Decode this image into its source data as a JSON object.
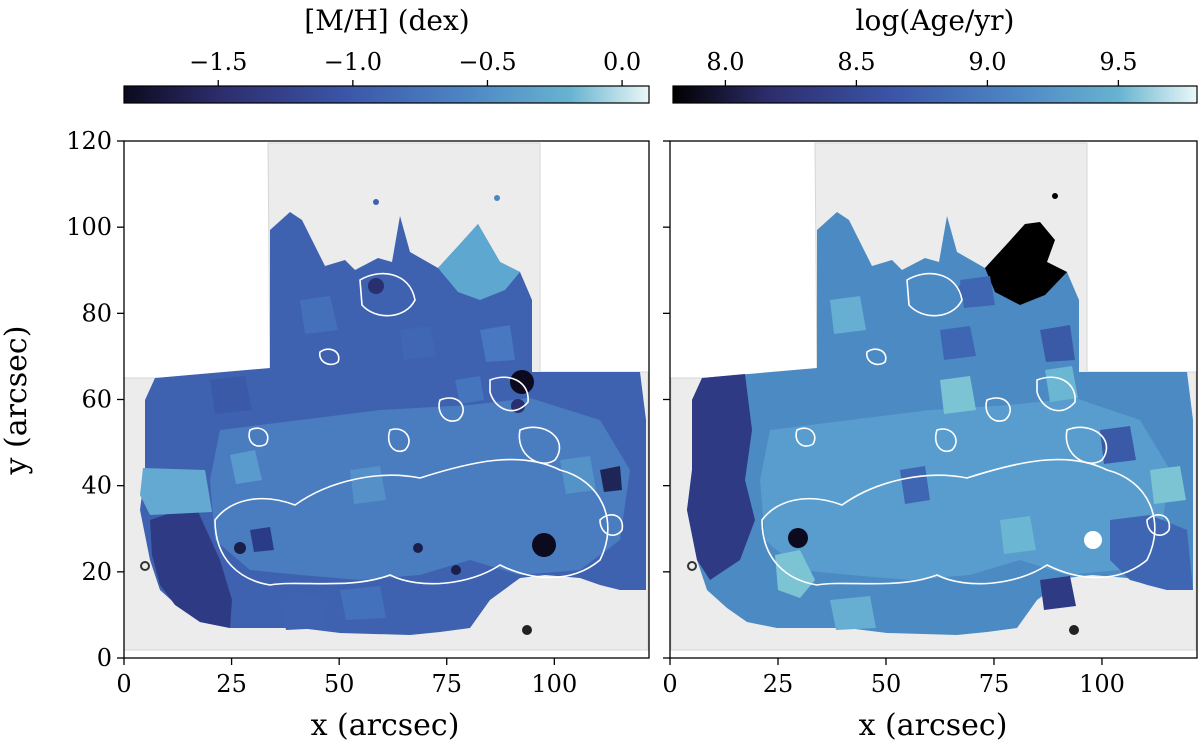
{
  "chart_data": [
    {
      "type": "heatmap",
      "panel": "left",
      "xlabel": "x (arcsec)",
      "ylabel": "y (arcsec)",
      "xlim": [
        0,
        122
      ],
      "ylim": [
        0,
        120
      ],
      "xticks": [
        0,
        25,
        50,
        75,
        100
      ],
      "yticks": [
        0,
        20,
        40,
        60,
        80,
        100,
        120
      ],
      "colorbar": {
        "label": "[M/H] (dex)",
        "range": [
          -1.85,
          0.1
        ],
        "ticks": [
          "−1.5",
          "−1.0",
          "−0.5",
          "0.0"
        ],
        "tick_values": [
          -1.5,
          -1.0,
          -0.5,
          0.0
        ],
        "colormap": [
          "#0b0a1e",
          "#2d2c6b",
          "#3b55a8",
          "#4d86c4",
          "#67b3d0",
          "#eaf8f8"
        ]
      },
      "typical_value": -0.8,
      "notable_values": [
        {
          "x": 94,
          "y": 64,
          "value": -1.8
        },
        {
          "x": 97,
          "y": 26,
          "value": -1.8
        },
        {
          "x": 33,
          "y": 23,
          "value": -1.7
        },
        {
          "x": 88,
          "y": 84,
          "value": -0.2
        },
        {
          "x": 7,
          "y": 40,
          "value": -0.4
        },
        {
          "x": 25,
          "y": 20,
          "value": -1.2
        }
      ]
    },
    {
      "type": "heatmap",
      "panel": "right",
      "xlabel": "x (arcsec)",
      "ylabel": "",
      "xlim": [
        0,
        122
      ],
      "ylim": [
        0,
        120
      ],
      "xticks": [
        0,
        25,
        50,
        75,
        100
      ],
      "yticks": [
        0,
        20,
        40,
        60,
        80,
        100,
        120
      ],
      "colorbar": {
        "label": "log(Age/yr)",
        "range": [
          7.8,
          9.8
        ],
        "ticks": [
          "8.0",
          "8.5",
          "9.0",
          "9.5"
        ],
        "tick_values": [
          8.0,
          8.5,
          9.0,
          9.5
        ],
        "colormap": [
          "#000000",
          "#2d2c6b",
          "#3b55a8",
          "#4d86c4",
          "#67b3d0",
          "#eaf8f8"
        ]
      },
      "typical_value": 9.3,
      "notable_values": [
        {
          "x": 82,
          "y": 88,
          "value": 7.8
        },
        {
          "x": 30,
          "y": 27,
          "value": 7.9
        },
        {
          "x": 96,
          "y": 27,
          "value": 9.8
        },
        {
          "x": 10,
          "y": 45,
          "value": 8.7
        },
        {
          "x": 30,
          "y": 20,
          "value": 9.5
        },
        {
          "x": 90,
          "y": 66,
          "value": 9.4
        }
      ]
    }
  ]
}
